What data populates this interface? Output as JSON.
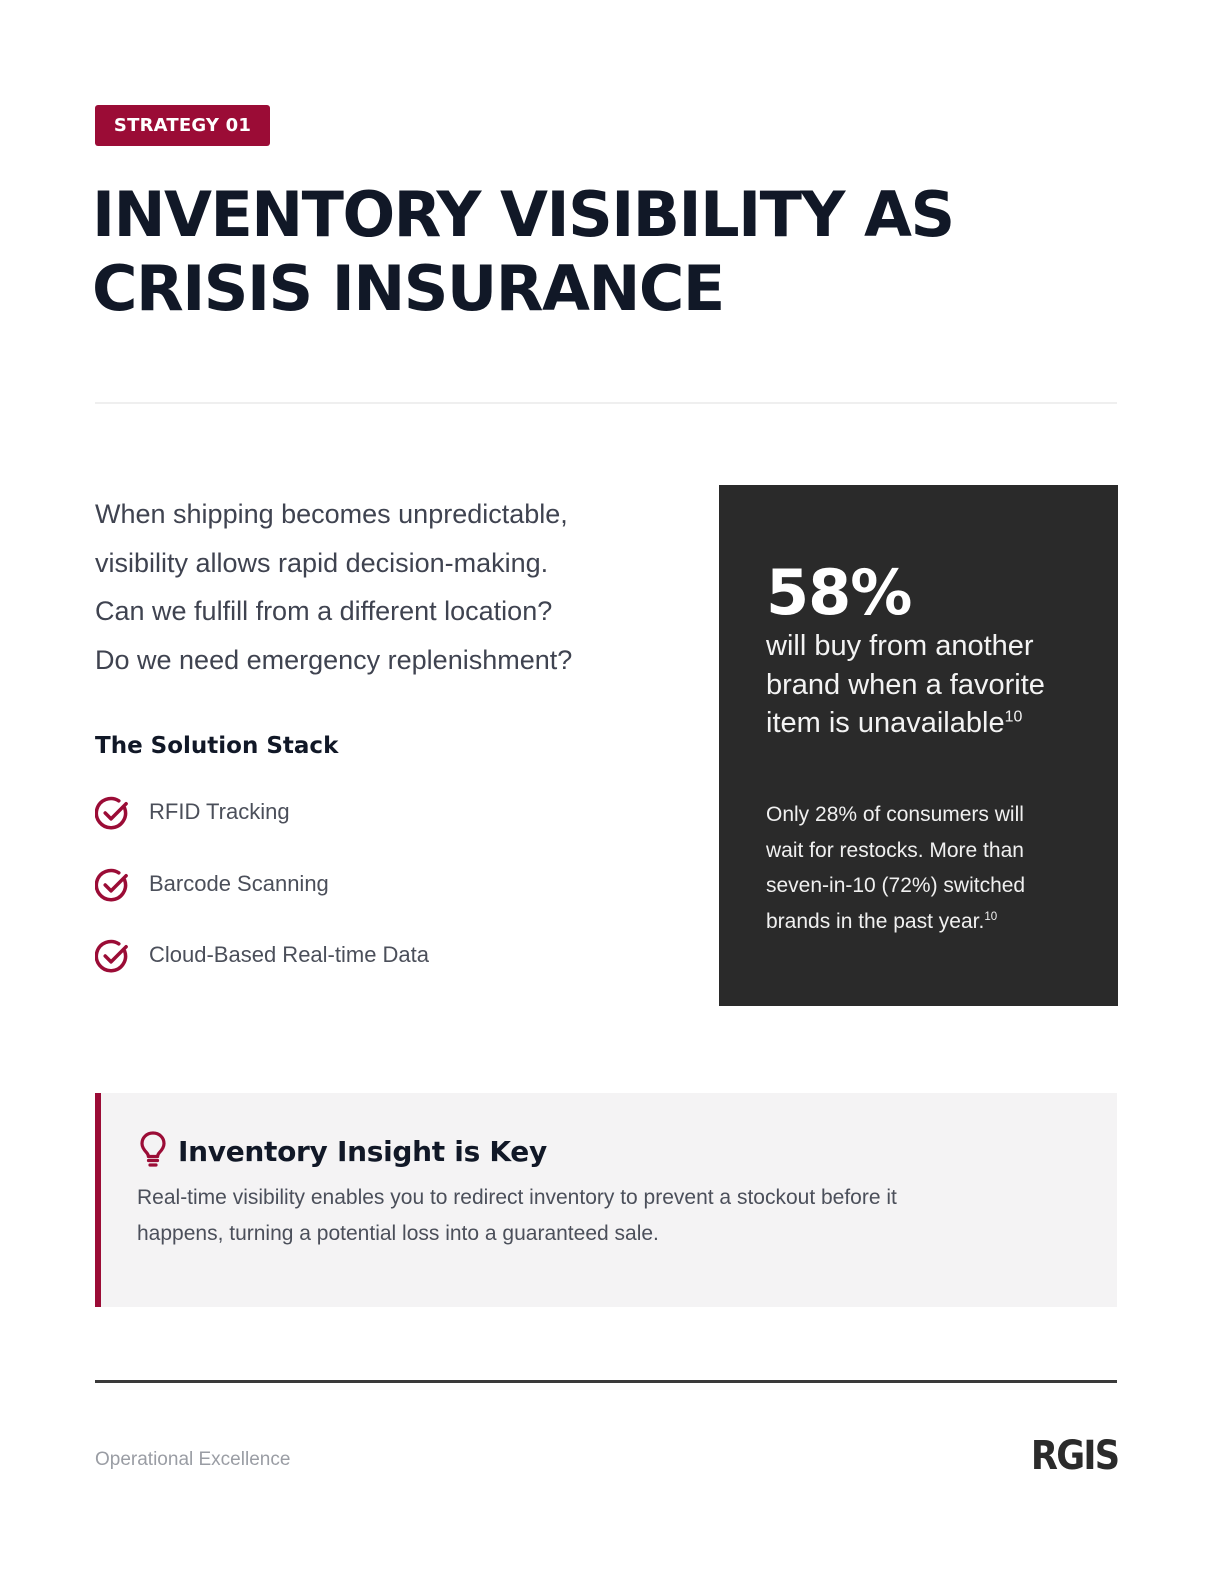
{
  "badge": "STRATEGY 01",
  "title": {
    "line1": "INVENTORY VISIBILITY AS",
    "line2": "CRISIS INSURANCE"
  },
  "intro": {
    "line1": "When shipping becomes unpredictable,",
    "line2": "visibility allows rapid decision-making.",
    "line3": "Can we fulfill from a different location?",
    "line4": "Do we need emergency replenishment?"
  },
  "solution_stack": {
    "heading": "The Solution Stack",
    "items": [
      {
        "label": "RFID Tracking",
        "icon": "check-circle-icon"
      },
      {
        "label": "Barcode Scanning",
        "icon": "check-circle-icon"
      },
      {
        "label": "Cloud-Based Real-time Data",
        "icon": "check-circle-icon"
      }
    ]
  },
  "stat_card": {
    "value": "58%",
    "desc_line1": "will buy from another",
    "desc_line2": "brand when a favorite",
    "desc_line3": "item is unavailable",
    "desc_ref": "10",
    "note_line1": "Only 28% of consumers will",
    "note_line2": "wait for restocks. More than",
    "note_line3": "seven-in-10 (72%) switched",
    "note_line4": "brands in the past year.",
    "note_ref": "10"
  },
  "insight": {
    "icon": "lightbulb-icon",
    "title": "Inventory Insight is Key",
    "text_line1": "Real-time visibility enables you to redirect inventory to prevent a stockout before it",
    "text_line2": "happens, turning a potential loss into a guaranteed sale."
  },
  "footer": {
    "label": "Operational Excellence",
    "logo": "RGIS"
  },
  "colors": {
    "accent": "#9b0c36",
    "dark_card": "#2a2a2a",
    "text_dark": "#111827",
    "insight_bg": "#f4f3f4"
  }
}
